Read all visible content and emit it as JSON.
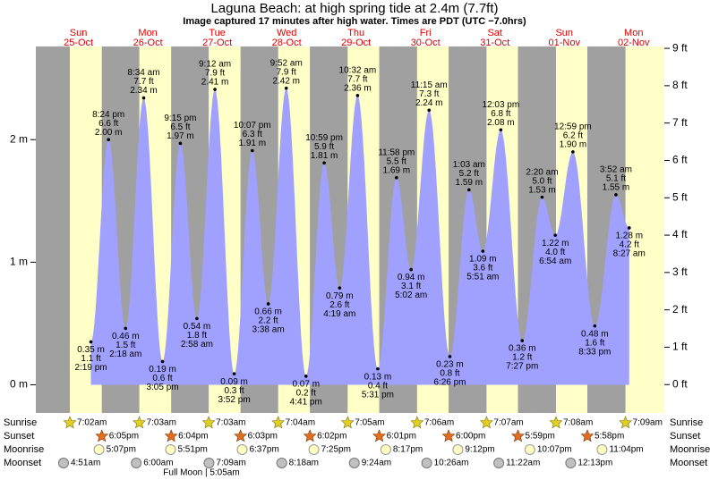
{
  "chart_data": {
    "type": "tide",
    "title": "Laguna Beach: at high  spring tide at 2.4m (7.7ft)",
    "subtitle": "Image captured 17 minutes after high water. Times are PDT (UTC −7.0hrs)",
    "ylim": [
      -0.23,
      2.76
    ],
    "yticks": [
      {
        "value": 0,
        "label": "0 m"
      },
      {
        "value": 1,
        "label": "1 m"
      },
      {
        "value": 2,
        "label": "2 m"
      }
    ],
    "y2lim": [
      -0.76,
      9.05
    ],
    "y2ticks": [
      {
        "value": 0,
        "label": "0 ft"
      },
      {
        "value": 1,
        "label": "1 ft"
      },
      {
        "value": 2,
        "label": "2 ft"
      },
      {
        "value": 3,
        "label": "3 ft"
      },
      {
        "value": 4,
        "label": "4 ft"
      },
      {
        "value": 5,
        "label": "5 ft"
      },
      {
        "value": 6,
        "label": "6 ft"
      },
      {
        "value": 7,
        "label": "7 ft"
      },
      {
        "value": 8,
        "label": "8 ft"
      },
      {
        "value": 9,
        "label": "9 ft"
      }
    ],
    "row_labels": {
      "sunrise": "Sunrise",
      "sunset": "Sunset",
      "moonrise": "Moonrise",
      "moonset": "Moonset"
    },
    "moon_phase": "Full Moon | 5:05am",
    "days": [
      {
        "day": "Sun",
        "date": "25-Oct",
        "sunrise": "7:02am",
        "sunset": "6:05pm",
        "moonrise": "5:07pm",
        "moonset": "4:51am",
        "tides": [
          {
            "time": "2:19 pm",
            "m": 0.35,
            "m_label": "0.35 m",
            "ft_label": "1.1 ft"
          },
          {
            "time": "8:24 pm",
            "m": 2.0,
            "m_label": "2.00 m",
            "ft_label": "6.6 ft"
          }
        ]
      },
      {
        "day": "Mon",
        "date": "26-Oct",
        "sunrise": "7:03am",
        "sunset": "6:04pm",
        "moonrise": "5:51pm",
        "moonset": "6:00am",
        "tides": [
          {
            "time": "2:18 am",
            "m": 0.46,
            "m_label": "0.46 m",
            "ft_label": "1.5 ft"
          },
          {
            "time": "8:34 am",
            "m": 2.34,
            "m_label": "2.34 m",
            "ft_label": "7.7 ft"
          },
          {
            "time": "3:05 pm",
            "m": 0.19,
            "m_label": "0.19 m",
            "ft_label": "0.6 ft"
          },
          {
            "time": "9:15 pm",
            "m": 1.97,
            "m_label": "1.97 m",
            "ft_label": "6.5 ft"
          }
        ]
      },
      {
        "day": "Tue",
        "date": "27-Oct",
        "sunrise": "7:03am",
        "sunset": "6:03pm",
        "moonrise": "6:37pm",
        "moonset": "7:09am",
        "tides": [
          {
            "time": "2:58 am",
            "m": 0.54,
            "m_label": "0.54 m",
            "ft_label": "1.8 ft"
          },
          {
            "time": "9:12 am",
            "m": 2.41,
            "m_label": "2.41 m",
            "ft_label": "7.9 ft"
          },
          {
            "time": "3:52 pm",
            "m": 0.09,
            "m_label": "0.09 m",
            "ft_label": "0.3 ft"
          },
          {
            "time": "10:07 pm",
            "m": 1.91,
            "m_label": "1.91 m",
            "ft_label": "6.3 ft"
          }
        ]
      },
      {
        "day": "Wed",
        "date": "28-Oct",
        "sunrise": "7:04am",
        "sunset": "6:02pm",
        "moonrise": "7:25pm",
        "moonset": "8:18am",
        "tides": [
          {
            "time": "3:38 am",
            "m": 0.66,
            "m_label": "0.66 m",
            "ft_label": "2.2 ft"
          },
          {
            "time": "9:52 am",
            "m": 2.42,
            "m_label": "2.42 m",
            "ft_label": "7.9 ft"
          },
          {
            "time": "4:41 pm",
            "m": 0.07,
            "m_label": "0.07 m",
            "ft_label": "0.2 ft"
          },
          {
            "time": "10:59 pm",
            "m": 1.81,
            "m_label": "1.81 m",
            "ft_label": "5.9 ft"
          }
        ]
      },
      {
        "day": "Thu",
        "date": "29-Oct",
        "sunrise": "7:05am",
        "sunset": "6:01pm",
        "moonrise": "8:17pm",
        "moonset": "9:24am",
        "tides": [
          {
            "time": "4:19 am",
            "m": 0.79,
            "m_label": "0.79 m",
            "ft_label": "2.6 ft"
          },
          {
            "time": "10:32 am",
            "m": 2.36,
            "m_label": "2.36 m",
            "ft_label": "7.7 ft"
          },
          {
            "time": "5:31 pm",
            "m": 0.13,
            "m_label": "0.13 m",
            "ft_label": "0.4 ft"
          },
          {
            "time": "11:58 pm",
            "m": 1.69,
            "m_label": "1.69 m",
            "ft_label": "5.5 ft"
          }
        ]
      },
      {
        "day": "Fri",
        "date": "30-Oct",
        "sunrise": "7:06am",
        "sunset": "6:00pm",
        "moonrise": "9:12pm",
        "moonset": "10:26am",
        "tides": [
          {
            "time": "5:02 am",
            "m": 0.94,
            "m_label": "0.94 m",
            "ft_label": "3.1 ft"
          },
          {
            "time": "11:15 am",
            "m": 2.24,
            "m_label": "2.24 m",
            "ft_label": "7.3 ft"
          },
          {
            "time": "6:26 pm",
            "m": 0.23,
            "m_label": "0.23 m",
            "ft_label": "0.8 ft"
          }
        ]
      },
      {
        "day": "Sat",
        "date": "31-Oct",
        "sunrise": "7:07am",
        "sunset": "5:59pm",
        "moonrise": "10:07pm",
        "moonset": "11:22am",
        "tides": [
          {
            "time": "1:03 am",
            "m": 1.59,
            "m_label": "1.59 m",
            "ft_label": "5.2 ft"
          },
          {
            "time": "5:51 am",
            "m": 1.09,
            "m_label": "1.09 m",
            "ft_label": "3.6 ft"
          },
          {
            "time": "12:03 pm",
            "m": 2.08,
            "m_label": "2.08 m",
            "ft_label": "6.8 ft"
          },
          {
            "time": "7:27 pm",
            "m": 0.36,
            "m_label": "0.36 m",
            "ft_label": "1.2 ft"
          }
        ]
      },
      {
        "day": "Sun",
        "date": "01-Nov",
        "sunrise": "7:08am",
        "sunset": "5:58pm",
        "moonrise": "11:04pm",
        "moonset": "12:13pm",
        "tides": [
          {
            "time": "2:20 am",
            "m": 1.53,
            "m_label": "1.53 m",
            "ft_label": "5.0 ft"
          },
          {
            "time": "6:54 am",
            "m": 1.22,
            "m_label": "1.22 m",
            "ft_label": "4.0 ft"
          },
          {
            "time": "12:59 pm",
            "m": 1.9,
            "m_label": "1.90 m",
            "ft_label": "6.2 ft"
          },
          {
            "time": "8:33 pm",
            "m": 0.48,
            "m_label": "0.48 m",
            "ft_label": "1.6 ft"
          }
        ]
      },
      {
        "day": "Mon",
        "date": "02-Nov",
        "sunrise": "7:09am",
        "tides": [
          {
            "time": "3:52 am",
            "m": 1.55,
            "m_label": "1.55 m",
            "ft_label": "5.1 ft"
          },
          {
            "time": "8:27 am",
            "m": 1.28,
            "m_label": "1.28 m",
            "ft_label": "4.2 ft"
          }
        ]
      }
    ]
  }
}
